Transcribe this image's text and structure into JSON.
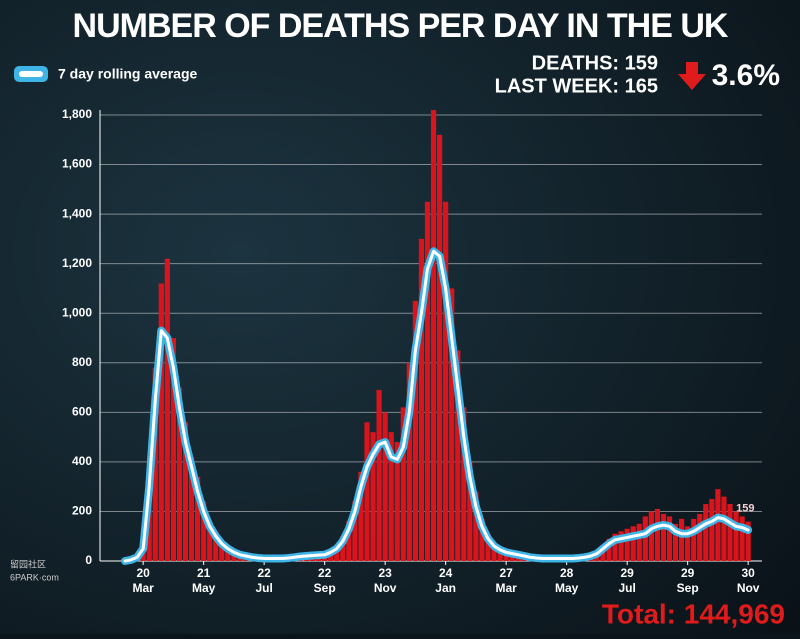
{
  "chart_data": {
    "type": "bar_line",
    "title": "NUMBER OF DEATHS PER DAY IN THE UK",
    "stats": {
      "deaths": "DEATHS: 159",
      "last_week": "LAST WEEK: 165",
      "change": "3.6%"
    },
    "total": "Total: 144,969",
    "watermark": [
      "留园社区",
      "6PARK·com"
    ],
    "categories": [
      null,
      null,
      null,
      [
        "20",
        "Mar"
      ],
      null,
      null,
      null,
      null,
      null,
      null,
      null,
      null,
      null,
      [
        "21",
        "May"
      ],
      null,
      null,
      null,
      null,
      null,
      null,
      null,
      null,
      null,
      [
        "22",
        "Jul"
      ],
      null,
      null,
      null,
      null,
      null,
      null,
      null,
      null,
      null,
      [
        "22",
        "Sep"
      ],
      null,
      null,
      null,
      null,
      null,
      null,
      null,
      null,
      null,
      [
        "23",
        "Nov"
      ],
      null,
      null,
      null,
      null,
      null,
      null,
      null,
      null,
      null,
      [
        "24",
        "Jan"
      ],
      null,
      null,
      null,
      null,
      null,
      null,
      null,
      null,
      null,
      [
        "27",
        "Mar"
      ],
      null,
      null,
      null,
      null,
      null,
      null,
      null,
      null,
      null,
      [
        "28",
        "May"
      ],
      null,
      null,
      null,
      null,
      null,
      null,
      null,
      null,
      null,
      [
        "29",
        "Jul"
      ],
      null,
      null,
      null,
      null,
      null,
      null,
      null,
      null,
      null,
      [
        "29",
        "Sep"
      ],
      null,
      null,
      null,
      null,
      null,
      null,
      null,
      null,
      null,
      [
        "30",
        "Nov"
      ]
    ],
    "series": [
      {
        "name": "Daily deaths",
        "kind": "bar",
        "color": "#d9141c",
        "values": [
          2,
          8,
          20,
          70,
          380,
          780,
          1120,
          1220,
          900,
          700,
          560,
          420,
          340,
          240,
          150,
          120,
          80,
          60,
          40,
          30,
          25,
          18,
          14,
          12,
          10,
          8,
          12,
          10,
          14,
          18,
          20,
          22,
          25,
          30,
          40,
          60,
          100,
          160,
          240,
          360,
          560,
          520,
          690,
          600,
          520,
          480,
          620,
          800,
          1050,
          1300,
          1450,
          1820,
          1720,
          1450,
          1100,
          850,
          620,
          400,
          280,
          170,
          110,
          70,
          55,
          40,
          35,
          28,
          22,
          18,
          14,
          12,
          10,
          9,
          12,
          10,
          11,
          14,
          18,
          25,
          40,
          65,
          90,
          110,
          120,
          130,
          140,
          150,
          180,
          200,
          210,
          190,
          180,
          150,
          170,
          140,
          170,
          190,
          230,
          250,
          290,
          260,
          230,
          200,
          180,
          159
        ]
      },
      {
        "name": "7 day rolling average",
        "kind": "line",
        "color": "#3fb4e6",
        "values": [
          0,
          5,
          15,
          50,
          300,
          650,
          930,
          900,
          780,
          620,
          480,
          380,
          280,
          200,
          140,
          100,
          70,
          50,
          35,
          25,
          20,
          15,
          12,
          10,
          10,
          10,
          10,
          12,
          15,
          18,
          20,
          22,
          24,
          25,
          35,
          50,
          80,
          130,
          200,
          300,
          380,
          430,
          470,
          480,
          420,
          410,
          460,
          600,
          850,
          1000,
          1180,
          1250,
          1230,
          1100,
          900,
          700,
          500,
          340,
          220,
          140,
          90,
          60,
          45,
          35,
          30,
          25,
          20,
          15,
          12,
          10,
          10,
          10,
          10,
          10,
          10,
          12,
          15,
          20,
          30,
          50,
          70,
          85,
          90,
          95,
          100,
          105,
          110,
          130,
          140,
          145,
          140,
          120,
          110,
          110,
          120,
          135,
          150,
          160,
          175,
          170,
          155,
          140,
          135,
          125
        ]
      }
    ],
    "ylim": [
      0,
      1800
    ],
    "yticks": [
      0,
      200,
      400,
      600,
      800,
      {
        "value": 1000,
        "label": "1,000"
      },
      {
        "value": 1200,
        "label": "1,200"
      },
      {
        "value": 1400,
        "label": "1,400"
      },
      {
        "value": 1600,
        "label": "1,600"
      },
      {
        "value": 1800,
        "label": "1,800"
      }
    ],
    "grid": true
  }
}
